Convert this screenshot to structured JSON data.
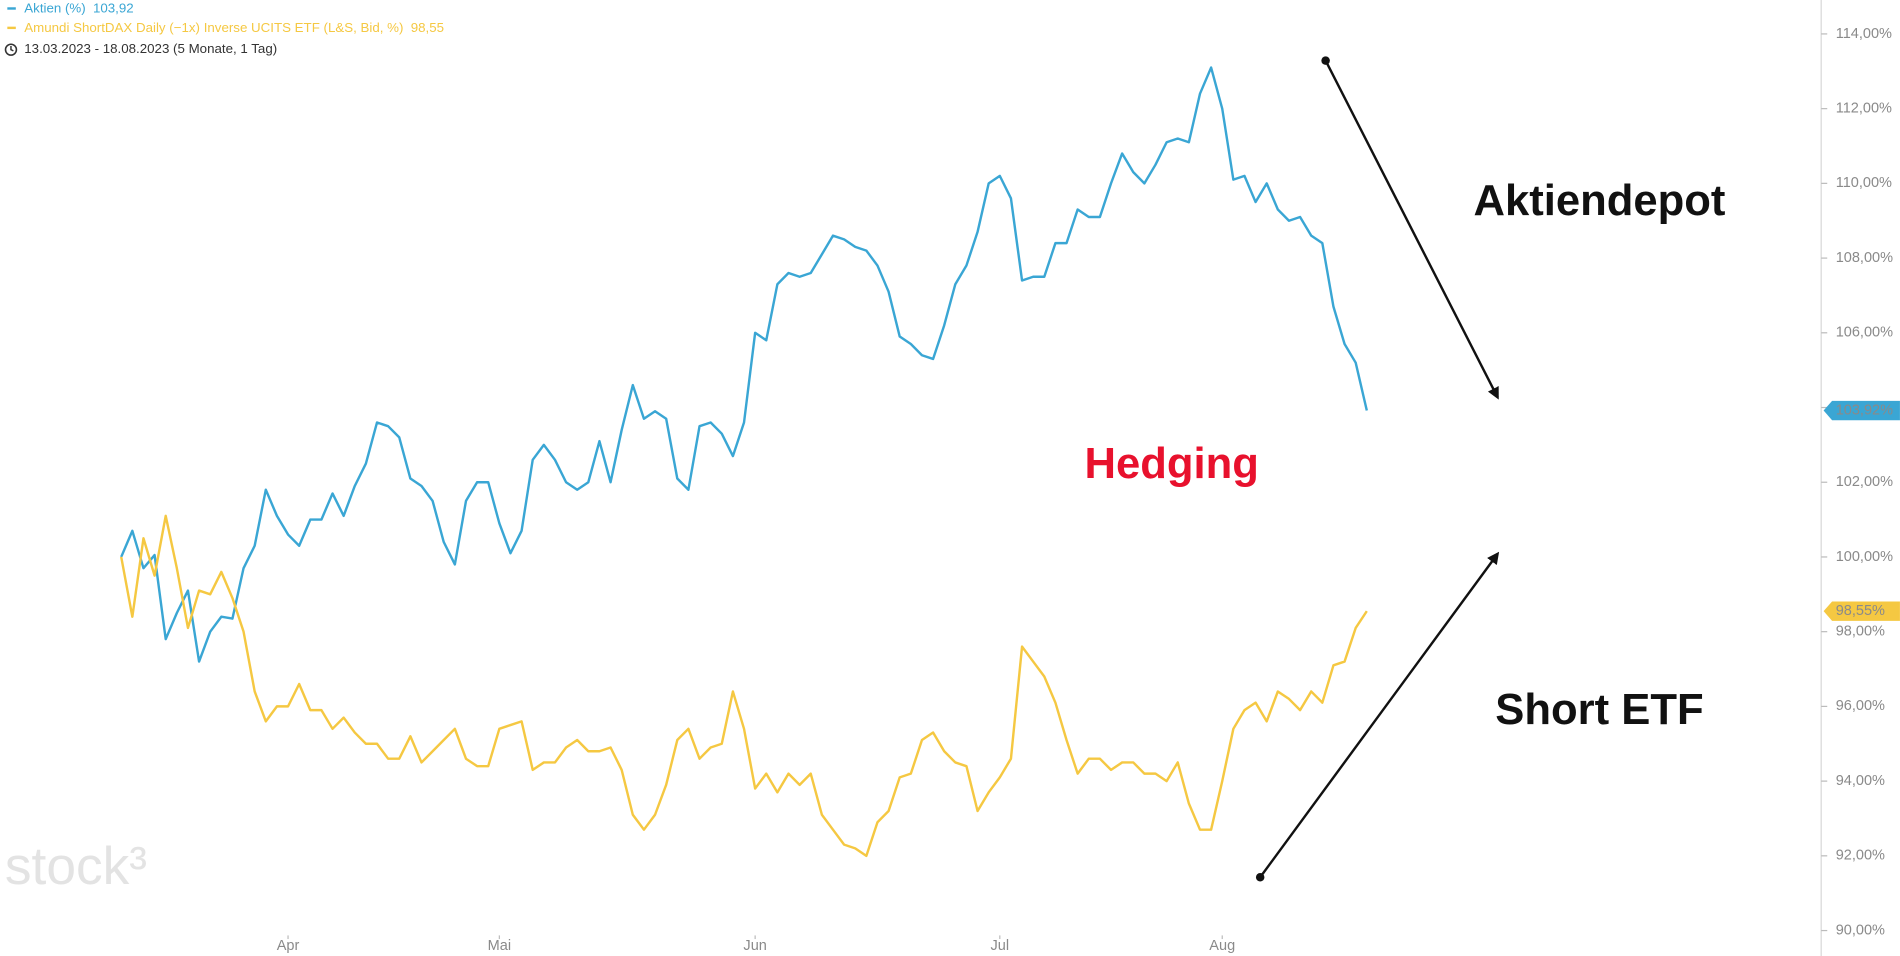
{
  "chart_data": {
    "type": "line",
    "date_range": "13.03.2023 - 18.08.2023  (5 Monate, 1 Tag)",
    "watermark": "stock³",
    "annotations": {
      "top": "Aktiendepot",
      "middle": "Hedging",
      "bottom": "Short ETF"
    },
    "xlim": [
      0,
      112
    ],
    "xticks": [
      {
        "value": 15,
        "label": "Apr"
      },
      {
        "value": 34,
        "label": "Mai"
      },
      {
        "value": 57,
        "label": "Jun"
      },
      {
        "value": 79,
        "label": "Jul"
      },
      {
        "value": 99,
        "label": "Aug"
      }
    ],
    "ylim": [
      90,
      114
    ],
    "yticks": [
      {
        "value": 90,
        "label": "90,00%"
      },
      {
        "value": 92,
        "label": "92,00%"
      },
      {
        "value": 94,
        "label": "94,00%"
      },
      {
        "value": 96,
        "label": "96,00%"
      },
      {
        "value": 98,
        "label": "98,00%"
      },
      {
        "value": 100,
        "label": "100,00%"
      },
      {
        "value": 102,
        "label": "102,00%"
      },
      {
        "value": 104,
        "label": "104,00%"
      },
      {
        "value": 106,
        "label": "106,00%"
      },
      {
        "value": 108,
        "label": "108,00%"
      },
      {
        "value": 110,
        "label": "110,00%"
      },
      {
        "value": 112,
        "label": "112,00%"
      },
      {
        "value": 114,
        "label": "114,00%"
      }
    ],
    "grid": false,
    "series": [
      {
        "name": "Aktien (%)",
        "legend_value": "103,92",
        "end_label": "103,92%",
        "color": "#3aa6d4",
        "values": [
          100.0,
          100.7,
          99.7,
          100.05,
          97.8,
          98.5,
          99.1,
          97.2,
          98.0,
          98.4,
          98.35,
          99.7,
          100.3,
          101.8,
          101.1,
          100.6,
          100.3,
          101.0,
          101.0,
          101.7,
          101.1,
          101.9,
          102.5,
          103.6,
          103.5,
          103.2,
          102.1,
          101.9,
          101.5,
          100.4,
          99.8,
          101.5,
          102.0,
          102.0,
          100.9,
          100.1,
          100.7,
          102.6,
          103.0,
          102.6,
          102.0,
          101.8,
          102.0,
          103.1,
          102.0,
          103.4,
          104.6,
          103.7,
          103.9,
          103.7,
          102.1,
          101.8,
          103.5,
          103.6,
          103.3,
          102.7,
          103.6,
          106.0,
          105.8,
          107.3,
          107.6,
          107.5,
          107.6,
          108.1,
          108.6,
          108.5,
          108.3,
          108.2,
          107.8,
          107.1,
          105.9,
          105.7,
          105.4,
          105.3,
          106.2,
          107.3,
          107.8,
          108.7,
          110.0,
          110.2,
          109.6,
          107.4,
          107.5,
          107.5,
          108.4,
          108.4,
          109.3,
          109.1,
          109.1,
          110.0,
          110.8,
          110.3,
          110.0,
          110.5,
          111.1,
          111.2,
          111.1,
          112.4,
          113.1,
          112.0,
          110.1,
          110.2,
          109.5,
          110.0,
          109.3,
          109.0,
          109.1,
          108.6,
          108.4,
          106.7,
          105.7,
          105.2,
          103.92
        ]
      },
      {
        "name": "Amundi ShortDAX Daily (−1x) Inverse UCITS ETF (L&S, Bid, %)",
        "legend_value": "98,55",
        "end_label": "98,55%",
        "color": "#f5c842",
        "values": [
          100,
          98.4,
          100.5,
          99.5,
          101.1,
          99.7,
          98.1,
          99.1,
          99.0,
          99.6,
          98.9,
          98.0,
          96.4,
          95.6,
          96.0,
          96.0,
          96.6,
          95.9,
          95.9,
          95.4,
          95.7,
          95.3,
          95.0,
          95.0,
          94.6,
          94.6,
          95.2,
          94.5,
          94.8,
          95.1,
          95.4,
          94.6,
          94.4,
          94.4,
          95.4,
          95.5,
          95.6,
          94.3,
          94.5,
          94.5,
          94.9,
          95.1,
          94.8,
          94.8,
          94.9,
          94.3,
          93.1,
          92.7,
          93.1,
          93.9,
          95.1,
          95.4,
          94.6,
          94.9,
          95.0,
          96.4,
          95.4,
          93.8,
          94.2,
          93.7,
          94.2,
          93.9,
          94.2,
          93.1,
          92.7,
          92.3,
          92.2,
          92.0,
          92.9,
          93.2,
          94.1,
          94.2,
          95.1,
          95.3,
          94.8,
          94.5,
          94.4,
          93.2,
          93.7,
          94.1,
          94.6,
          97.6,
          97.2,
          96.8,
          96.1,
          95.1,
          94.2,
          94.6,
          94.6,
          94.3,
          94.5,
          94.5,
          94.2,
          94.2,
          94.0,
          94.5,
          93.4,
          92.7,
          92.7,
          94.0,
          95.4,
          95.9,
          96.1,
          95.6,
          96.4,
          96.2,
          95.9,
          96.4,
          96.1,
          97.1,
          97.2,
          98.1,
          98.55
        ]
      }
    ]
  }
}
